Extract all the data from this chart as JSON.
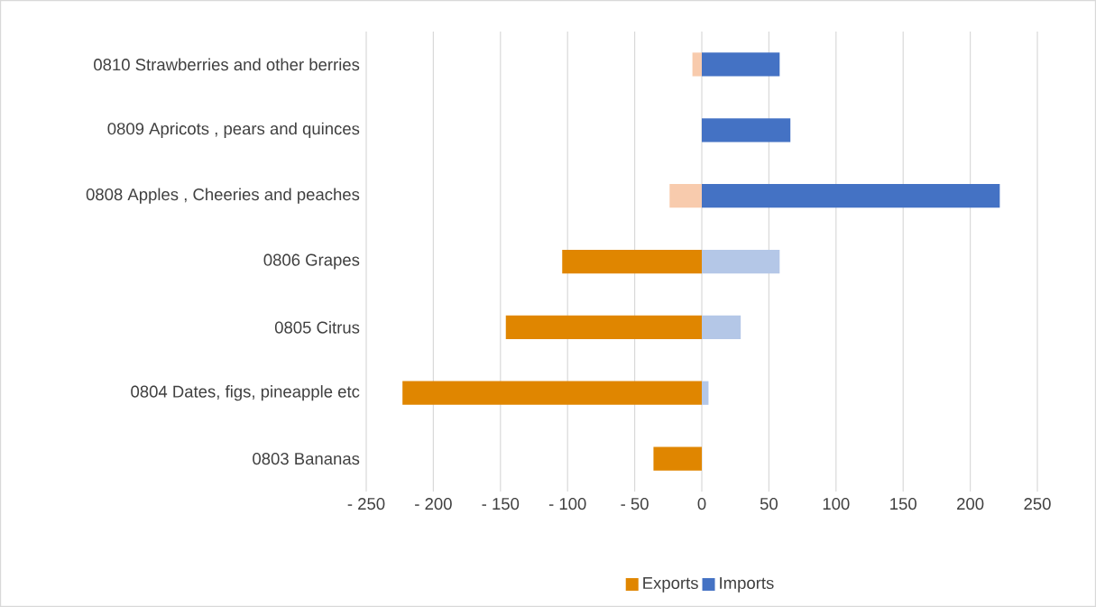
{
  "chart_data": {
    "type": "bar",
    "orientation": "horizontal",
    "categories": [
      "0810 Strawberries and other berries",
      "0809 Apricots , pears and quinces",
      "0808 Apples , Cheeries and peaches",
      "0806 Grapes",
      "0805 Citrus",
      "0804 Dates, figs, pineapple etc",
      "0803 Bananas"
    ],
    "series": [
      {
        "name": "Exports",
        "color": "#e08600",
        "colors": [
          "#f8cbad",
          "#f8cbad",
          "#f8cbad",
          "#e08600",
          "#e08600",
          "#e08600",
          "#e08600"
        ],
        "values": [
          -7,
          0,
          -24,
          -104,
          -146,
          -223,
          -36
        ]
      },
      {
        "name": "Imports",
        "color": "#4472c4",
        "colors": [
          "#4472c4",
          "#4472c4",
          "#4472c4",
          "#b4c7e7",
          "#b4c7e7",
          "#b4c7e7",
          "#4472c4"
        ],
        "values": [
          58,
          66,
          222,
          58,
          29,
          5,
          0
        ]
      }
    ],
    "xlim": [
      -250,
      250
    ],
    "xticks": [
      {
        "value": -250,
        "label": "- 250"
      },
      {
        "value": -200,
        "label": "- 200"
      },
      {
        "value": -150,
        "label": "- 150"
      },
      {
        "value": -100,
        "label": "- 100"
      },
      {
        "value": -50,
        "label": "- 50"
      },
      0,
      50,
      100,
      150,
      200,
      250
    ],
    "grid": "x",
    "legend": "bottom",
    "stacked": true
  }
}
